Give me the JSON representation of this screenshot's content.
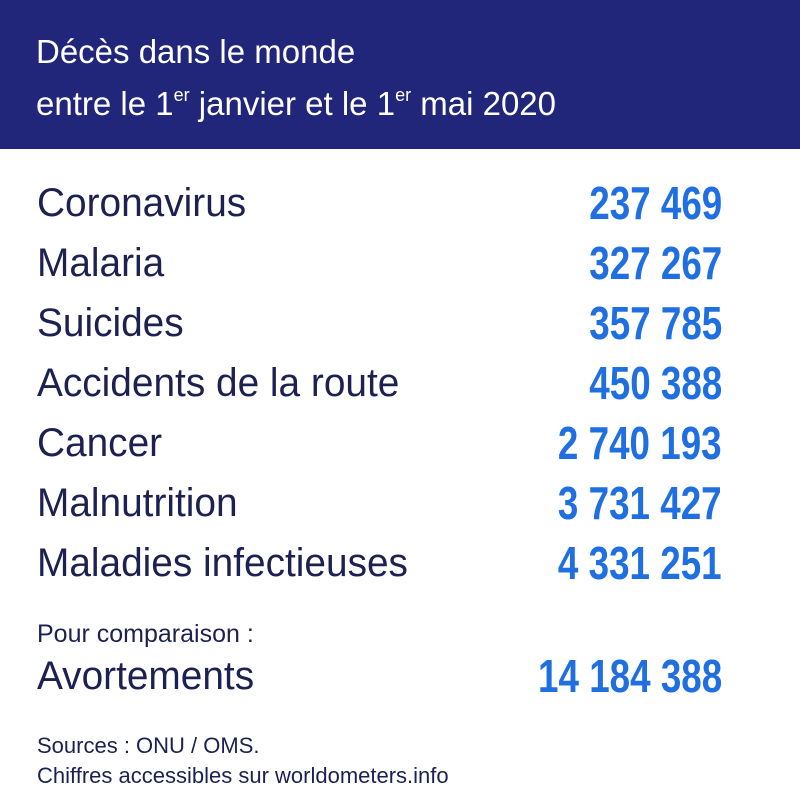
{
  "header": {
    "line1": "Décès dans le monde",
    "line2_a": "entre le 1",
    "line2_sup1": "er",
    "line2_b": " janvier et le 1",
    "line2_sup2": "er",
    "line2_c": " mai 2020"
  },
  "rows": [
    {
      "label": "Coronavirus",
      "value": "237 469"
    },
    {
      "label": "Malaria",
      "value": "327 267"
    },
    {
      "label": "Suicides",
      "value": "357 785"
    },
    {
      "label": "Accidents de la route",
      "value": "450 388"
    },
    {
      "label": "Cancer",
      "value": "2 740 193"
    },
    {
      "label": "Malnutrition",
      "value": "3 731 427"
    },
    {
      "label": "Maladies infectieuses",
      "value": "4 331 251"
    }
  ],
  "comparison": {
    "intro": "Pour comparaison :",
    "label": "Avortements",
    "value": "14 184 388"
  },
  "sources": {
    "line1": "Sources : ONU / OMS.",
    "line2": "Chiffres accessibles sur worldometers.info"
  },
  "colors": {
    "header_bg": "#22267a",
    "number": "#1f6fe0",
    "label": "#1c2152"
  }
}
